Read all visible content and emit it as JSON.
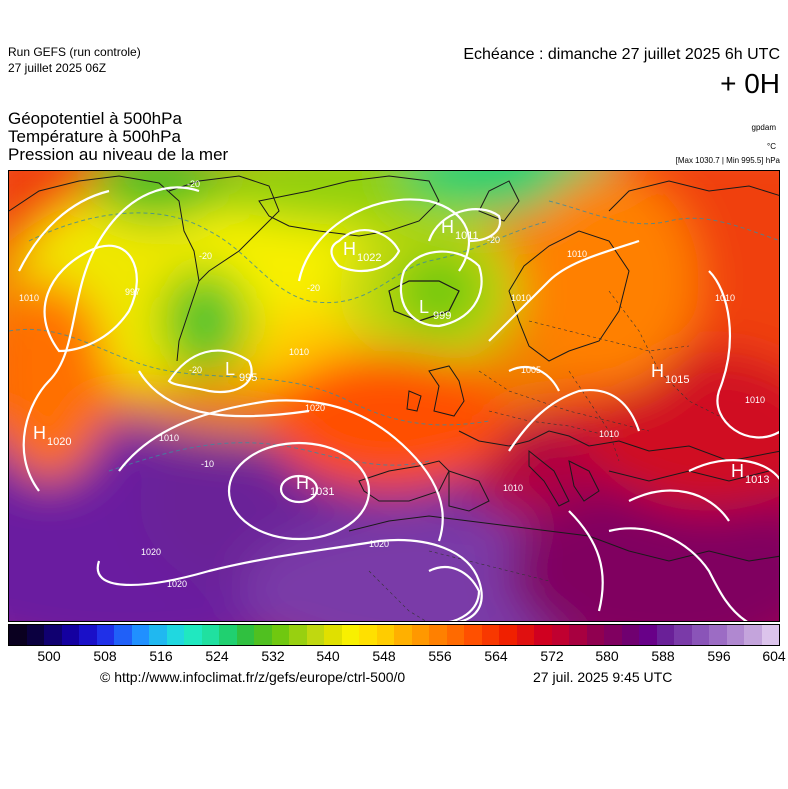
{
  "header": {
    "run_title": "Run GEFS (run controle)",
    "run_date": "27 juillet 2025 06Z",
    "echeance": "Echéance : dimanche 27 juillet 2025 6h UTC",
    "lead": "+ 0H"
  },
  "params": [
    "Géopotentiel à 500hPa",
    "Température à 500hPa",
    "Pression au niveau de la mer"
  ],
  "units": {
    "geopotential": "gpdam",
    "temperature": "°C",
    "minmax": "[Max 1030.7 | Min 995.5] hPa"
  },
  "map": {
    "pressure_centers": [
      {
        "type": "H",
        "value": "1020",
        "label": "H1020"
      },
      {
        "type": "L",
        "value": "995",
        "label": "L995"
      },
      {
        "type": "H",
        "value": "1022",
        "label": "H1022"
      },
      {
        "type": "H",
        "value": "1011",
        "label": "H1011"
      },
      {
        "type": "L",
        "value": "999",
        "label": "L999"
      },
      {
        "type": "H",
        "value": "1031",
        "label": "H1031"
      },
      {
        "type": "H",
        "value": "1015",
        "label": "H1015"
      },
      {
        "type": "H",
        "value": "1013",
        "label": "H1013"
      }
    ],
    "isobar_labels": [
      "1020",
      "1020",
      "1020",
      "1010",
      "1010",
      "1010",
      "1010",
      "1010",
      "1010",
      "1010",
      "1010",
      "997",
      "1005",
      "1010",
      "1020"
    ],
    "temperature_labels": [
      "-20",
      "-20",
      "-20",
      "-20",
      "-20",
      "-10"
    ]
  },
  "colorbar": {
    "ticks": [
      "500",
      "508",
      "516",
      "524",
      "532",
      "540",
      "548",
      "556",
      "564",
      "572",
      "580",
      "588",
      "596",
      "604"
    ],
    "colors": [
      "#0a0020",
      "#0b0040",
      "#100070",
      "#1400a0",
      "#1a10c8",
      "#2030e8",
      "#2060f8",
      "#2090ff",
      "#20b8f0",
      "#20d8e0",
      "#20e8c0",
      "#20e0a0",
      "#20d070",
      "#30c040",
      "#50c020",
      "#70c810",
      "#98d010",
      "#c0d810",
      "#e0e000",
      "#f8f000",
      "#ffe000",
      "#ffcc00",
      "#ffb000",
      "#ff9800",
      "#ff8000",
      "#ff6a00",
      "#ff5000",
      "#f83800",
      "#f02000",
      "#e01010",
      "#d00020",
      "#c00030",
      "#a80040",
      "#900050",
      "#800060",
      "#700070",
      "#680088",
      "#6a2098",
      "#7a3aa8",
      "#8a54b8",
      "#9c6cc4",
      "#b088d0",
      "#c4a4dc",
      "#dcc4ec"
    ]
  },
  "footer": {
    "url": "© http://www.infoclimat.fr/z/gefs/europe/ctrl-500/0",
    "date": "27 juil. 2025  9:45 UTC"
  }
}
